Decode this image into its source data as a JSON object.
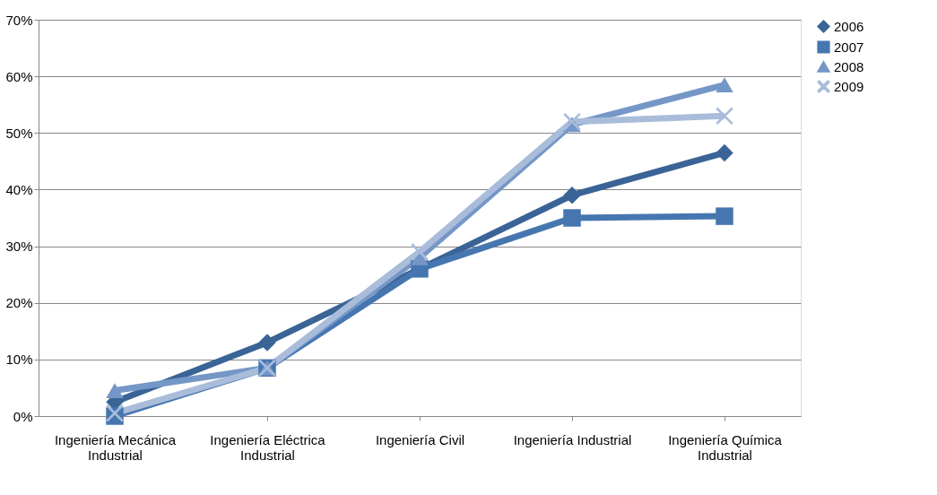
{
  "chart_data": {
    "type": "line",
    "categories": [
      "Ingeniería Mecánica Industrial",
      "Ingeniería Eléctrica Industrial",
      "Ingeniería Civil",
      "Ingeniería Industrial",
      "Ingeniería Química Industrial"
    ],
    "series": [
      {
        "name": "2006",
        "color": "#3a6496",
        "marker": "diamond",
        "values": [
          2.5,
          13,
          26,
          39,
          46.5
        ]
      },
      {
        "name": "2007",
        "color": "#4676b0",
        "marker": "square",
        "values": [
          0,
          8.5,
          26,
          35,
          35.3
        ]
      },
      {
        "name": "2008",
        "color": "#7597c7",
        "marker": "triangle",
        "values": [
          4.5,
          8.5,
          28,
          51.5,
          58.5
        ]
      },
      {
        "name": "2009",
        "color": "#a9bcda",
        "marker": "cross",
        "values": [
          0.5,
          8.5,
          29,
          52,
          53
        ]
      }
    ],
    "ylim": [
      0,
      70
    ],
    "yticks": [
      {
        "value": 0,
        "label": "0%"
      },
      {
        "value": 10,
        "label": "10%"
      },
      {
        "value": 20,
        "label": "20%"
      },
      {
        "value": 30,
        "label": "30%"
      },
      {
        "value": 40,
        "label": "40%"
      },
      {
        "value": 50,
        "label": "50%"
      },
      {
        "value": 60,
        "label": "60%"
      },
      {
        "value": 70,
        "label": "70%"
      }
    ],
    "grid": "y",
    "legend": "right",
    "line_style": "solid"
  }
}
